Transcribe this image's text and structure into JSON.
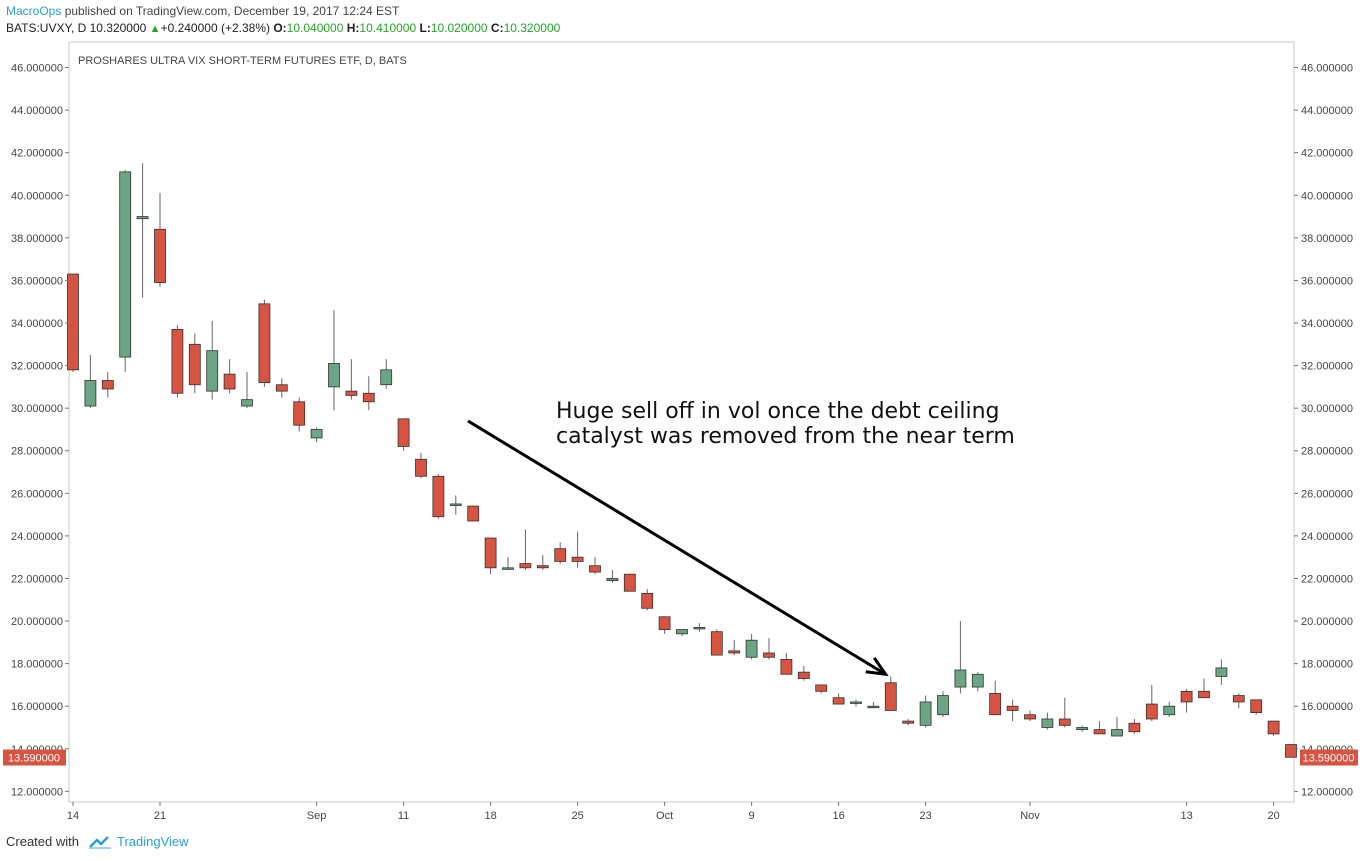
{
  "header": {
    "author": "MacroOps",
    "published_text": "published on TradingView.com, December 19, 2017 12:24 EST",
    "symbol": "BATS:UVXY, D",
    "last": "10.320000",
    "change": "+0.240000 (+2.38%)",
    "open_label": "O:",
    "open": "10.040000",
    "high_label": "H:",
    "high": "10.410000",
    "low_label": "L:",
    "low": "10.020000",
    "close_label": "C:",
    "close": "10.320000"
  },
  "footer": {
    "created_with": "Created with",
    "brand": "TradingView"
  },
  "colors": {
    "bull": "#6ba583",
    "bear": "#d75442",
    "axis_text": "#444444",
    "price_marker": "#d75442",
    "arrow": "#000000"
  },
  "chart_data": {
    "type": "candlestick",
    "title": "PROSHARES ULTRA VIX SHORT-TERM FUTURES ETF, D, BATS",
    "ylim": [
      11.5,
      47.2
    ],
    "y_ticks": [
      12,
      14,
      16,
      18,
      20,
      22,
      24,
      26,
      28,
      30,
      32,
      34,
      36,
      38,
      40,
      42,
      44,
      46
    ],
    "y_tick_labels": [
      "12.000000",
      "14.000000",
      "16.000000",
      "18.000000",
      "20.000000",
      "22.000000",
      "24.000000",
      "26.000000",
      "28.000000",
      "30.000000",
      "32.000000",
      "34.000000",
      "36.000000",
      "38.000000",
      "40.000000",
      "42.000000",
      "44.000000",
      "46.000000"
    ],
    "x_ticks": [
      {
        "i": 0,
        "label": "14"
      },
      {
        "i": 5,
        "label": "21"
      },
      {
        "i": 14,
        "label": "Sep"
      },
      {
        "i": 19,
        "label": "11"
      },
      {
        "i": 24,
        "label": "18"
      },
      {
        "i": 29,
        "label": "25"
      },
      {
        "i": 34,
        "label": "Oct"
      },
      {
        "i": 39,
        "label": "9"
      },
      {
        "i": 44,
        "label": "16"
      },
      {
        "i": 49,
        "label": "23"
      },
      {
        "i": 55,
        "label": "Nov"
      },
      {
        "i": 64,
        "label": "13"
      },
      {
        "i": 69,
        "label": "20"
      }
    ],
    "last_price_label": "13.590000",
    "last_price": 13.59,
    "annotation": {
      "lines": [
        "Huge sell off in vol once the debt ceiling",
        "catalyst was removed from the near term"
      ],
      "arrow_from": {
        "i": 22.7,
        "y": 29.4
      },
      "arrow_to": {
        "i": 46.7,
        "y": 17.5
      }
    },
    "ohlc": [
      [
        36.3,
        36.3,
        31.7,
        31.8
      ],
      [
        30.1,
        32.5,
        30.0,
        31.3
      ],
      [
        31.3,
        31.7,
        30.5,
        30.9
      ],
      [
        32.4,
        41.2,
        31.7,
        41.1
      ],
      [
        38.9,
        41.5,
        35.2,
        39.0
      ],
      [
        38.4,
        40.1,
        35.7,
        35.9
      ],
      [
        33.7,
        33.9,
        30.5,
        30.7
      ],
      [
        33.0,
        33.5,
        30.7,
        31.1
      ],
      [
        30.8,
        34.1,
        30.4,
        32.7
      ],
      [
        31.6,
        32.3,
        30.7,
        30.9
      ],
      [
        30.1,
        31.7,
        30.0,
        30.4
      ],
      [
        34.9,
        35.1,
        31.0,
        31.2
      ],
      [
        31.1,
        31.4,
        30.5,
        30.8
      ],
      [
        30.3,
        30.5,
        28.9,
        29.2
      ],
      [
        28.6,
        29.1,
        28.4,
        29.0
      ],
      [
        31.0,
        34.6,
        29.9,
        32.1
      ],
      [
        30.8,
        32.3,
        30.4,
        30.6
      ],
      [
        30.7,
        31.5,
        29.9,
        30.3
      ],
      [
        31.1,
        32.3,
        30.9,
        31.8
      ],
      [
        29.5,
        29.5,
        28.0,
        28.2
      ],
      [
        27.6,
        27.9,
        26.7,
        26.8
      ],
      [
        26.8,
        26.9,
        24.8,
        24.9
      ],
      [
        25.5,
        25.9,
        25.0,
        25.5
      ],
      [
        25.4,
        25.4,
        24.7,
        24.7
      ],
      [
        23.9,
        23.9,
        22.2,
        22.5
      ],
      [
        22.5,
        23.0,
        22.4,
        22.5
      ],
      [
        22.7,
        24.3,
        22.4,
        22.5
      ],
      [
        22.6,
        23.1,
        22.4,
        22.5
      ],
      [
        23.4,
        23.7,
        22.7,
        22.8
      ],
      [
        23.0,
        24.2,
        22.5,
        22.8
      ],
      [
        22.6,
        23.0,
        22.2,
        22.3
      ],
      [
        21.9,
        22.4,
        21.8,
        22.0
      ],
      [
        22.2,
        22.2,
        21.4,
        21.4
      ],
      [
        21.3,
        21.5,
        20.5,
        20.6
      ],
      [
        20.2,
        20.2,
        19.4,
        19.6
      ],
      [
        19.4,
        19.6,
        19.3,
        19.6
      ],
      [
        19.7,
        19.9,
        19.5,
        19.7
      ],
      [
        19.5,
        19.6,
        18.4,
        18.4
      ],
      [
        18.6,
        19.1,
        18.4,
        18.5
      ],
      [
        18.3,
        19.4,
        18.2,
        19.1
      ],
      [
        18.5,
        19.2,
        18.2,
        18.3
      ],
      [
        18.2,
        18.5,
        17.5,
        17.5
      ],
      [
        17.6,
        17.9,
        17.2,
        17.3
      ],
      [
        17.0,
        17.0,
        16.6,
        16.7
      ],
      [
        16.4,
        16.6,
        16.1,
        16.1
      ],
      [
        16.2,
        16.3,
        16.0,
        16.2
      ],
      [
        16.0,
        16.2,
        15.9,
        16.0
      ],
      [
        17.1,
        17.4,
        15.8,
        15.8
      ],
      [
        15.3,
        15.4,
        15.1,
        15.2
      ],
      [
        15.1,
        16.5,
        15.0,
        16.2
      ],
      [
        15.6,
        16.7,
        15.5,
        16.5
      ],
      [
        16.9,
        20.0,
        16.6,
        17.7
      ],
      [
        16.9,
        17.6,
        16.7,
        17.5
      ],
      [
        16.6,
        17.2,
        15.6,
        15.6
      ],
      [
        16.0,
        16.3,
        15.3,
        15.8
      ],
      [
        15.6,
        15.8,
        15.3,
        15.4
      ],
      [
        15.0,
        15.7,
        14.9,
        15.4
      ],
      [
        15.4,
        16.4,
        15.0,
        15.1
      ],
      [
        14.9,
        15.1,
        14.8,
        15.0
      ],
      [
        14.9,
        15.3,
        14.7,
        14.7
      ],
      [
        14.6,
        15.5,
        14.6,
        14.9
      ],
      [
        15.2,
        15.4,
        14.7,
        14.8
      ],
      [
        16.1,
        17.0,
        15.3,
        15.4
      ],
      [
        15.6,
        16.2,
        15.5,
        16.0
      ],
      [
        16.7,
        16.8,
        15.7,
        16.2
      ],
      [
        16.7,
        17.3,
        16.4,
        16.4
      ],
      [
        17.4,
        18.2,
        17.0,
        17.8
      ],
      [
        16.5,
        16.6,
        15.9,
        16.2
      ],
      [
        16.3,
        16.3,
        15.6,
        15.7
      ],
      [
        15.3,
        15.3,
        14.6,
        14.7
      ],
      [
        14.2,
        14.2,
        13.6,
        13.6
      ]
    ]
  }
}
